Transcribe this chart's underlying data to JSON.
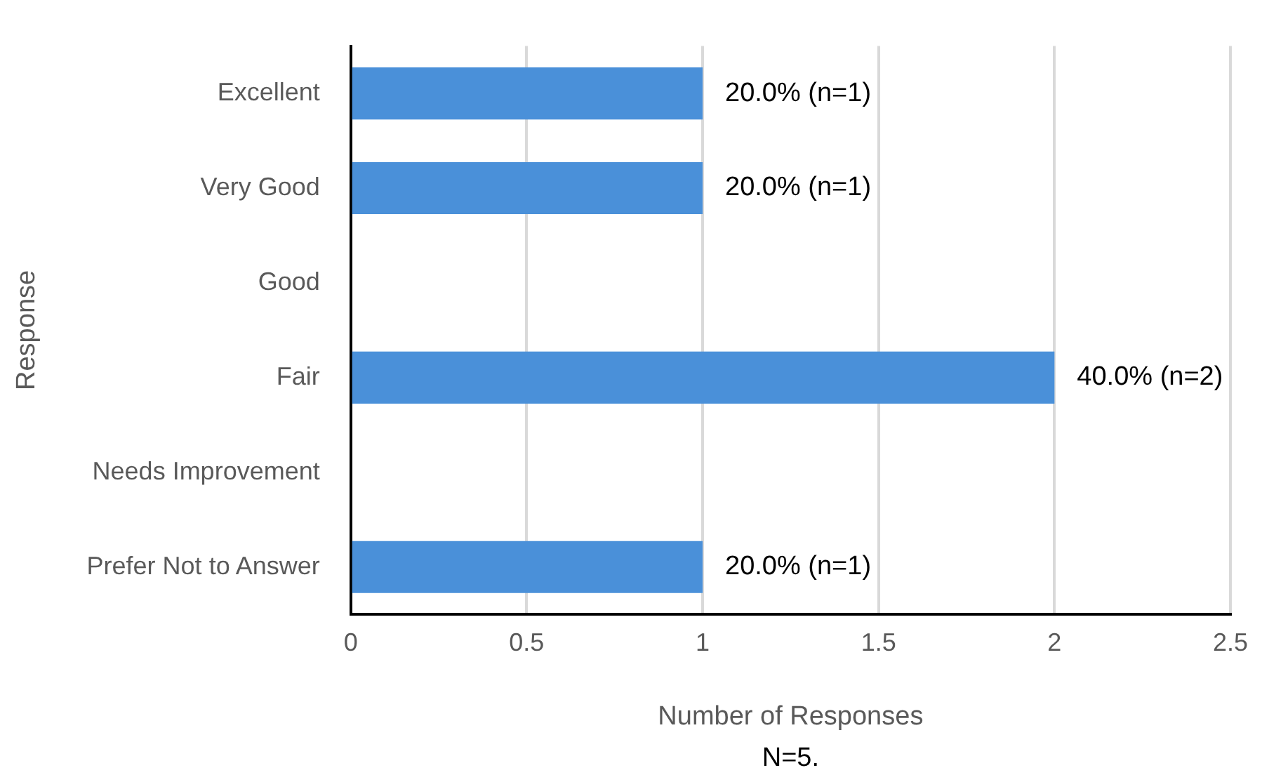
{
  "chart_data": {
    "type": "bar",
    "orientation": "horizontal",
    "xlabel": "Number of Responses",
    "ylabel": "Response",
    "categories": [
      "Excellent",
      "Very Good",
      "Good",
      "Fair",
      "Needs Improvement",
      "Prefer Not to Answer"
    ],
    "values": [
      1,
      1,
      0,
      2,
      0,
      1
    ],
    "value_labels": [
      "20.0% (n=1)",
      "20.0% (n=1)",
      null,
      "40.0% (n=2)",
      null,
      "20.0% (n=1)"
    ],
    "color": "#4a90d9",
    "xlim": [
      0,
      2.5
    ],
    "xticks": [
      0,
      0.5,
      1,
      1.5,
      2,
      2.5
    ],
    "grid": "x",
    "legend": false,
    "annotations": [
      "N=5."
    ]
  }
}
